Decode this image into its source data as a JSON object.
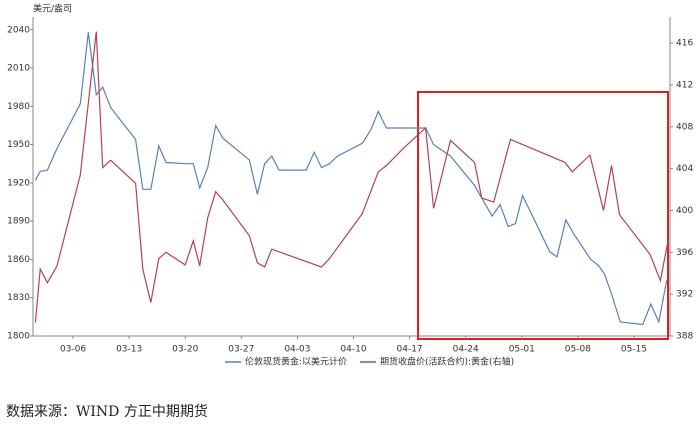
{
  "chart_data": {
    "type": "line",
    "y_label": "美元/盎司",
    "xlim": [
      0,
      79.5
    ],
    "xticks": [
      {
        "value": 5,
        "label": "03-06"
      },
      {
        "value": 12,
        "label": "03-13"
      },
      {
        "value": 19,
        "label": "03-20"
      },
      {
        "value": 26,
        "label": "03-27"
      },
      {
        "value": 33,
        "label": "04-03"
      },
      {
        "value": 40,
        "label": "04-10"
      },
      {
        "value": 47,
        "label": "04-17"
      },
      {
        "value": 54,
        "label": "04-24"
      },
      {
        "value": 61,
        "label": "05-01"
      },
      {
        "value": 68,
        "label": "05-08"
      },
      {
        "value": 75,
        "label": "05-15"
      }
    ],
    "ylim": [
      1800,
      2050
    ],
    "yticks": [
      1800,
      1830,
      1860,
      1890,
      1920,
      1950,
      1980,
      2010,
      2040
    ],
    "y2lim": [
      388,
      418.5
    ],
    "y2ticks": [
      388,
      392,
      396,
      400,
      404,
      408,
      412,
      416
    ],
    "grid": false,
    "series": [
      {
        "name": "伦敦现货黄金:以美元计价",
        "color": "#5b7fbf",
        "x": [
          0.3,
          0.9,
          1.8,
          3,
          5.9,
          6.9,
          7.9,
          8.7,
          9.7,
          12.8,
          13.7,
          14.7,
          15.7,
          16.6,
          19,
          20,
          20.8,
          21.8,
          22.8,
          23.7,
          27,
          28,
          28.9,
          29.8,
          30.7,
          32.5,
          34.1,
          35.1,
          36,
          37,
          38,
          41.1,
          42.2,
          43.1,
          44.1,
          46.3,
          48.2,
          49,
          50,
          52.1,
          55.1,
          57.3,
          58.3,
          59.3,
          60.2,
          61.1,
          64.5,
          65.4,
          66.5,
          67.5,
          69.6,
          70.6,
          71.3,
          72.2,
          73.3,
          76.1,
          77.1,
          78.1,
          79.1
        ],
        "values": [
          1922,
          1929,
          1930,
          1947,
          1982,
          2038,
          1989,
          1995,
          1979,
          1954,
          1915,
          1915,
          1949,
          1936,
          1935,
          1935,
          1916,
          1932,
          1965,
          1955,
          1938,
          1911,
          1935,
          1941,
          1930,
          1930,
          1930,
          1944,
          1932,
          1935,
          1941,
          1951,
          1962,
          1976,
          1963,
          1963,
          1963,
          1963,
          1950,
          1941,
          1918,
          1894,
          1903,
          1886,
          1888,
          1910,
          1866,
          1862,
          1891,
          1880,
          1860,
          1855,
          1849,
          1833,
          1811,
          1809,
          1825,
          1811,
          1844
        ]
      },
      {
        "name": "期货收盘价(活跃合约):黄金(右轴)",
        "color": "#b5434f",
        "axis": "y2",
        "x": [
          0.3,
          0.9,
          1.8,
          3,
          5.9,
          7.9,
          8.7,
          9.7,
          12.8,
          13.7,
          14.7,
          15.7,
          16.6,
          19,
          20,
          20.8,
          21.8,
          22.8,
          23.7,
          27,
          28,
          28.9,
          29.8,
          36,
          37,
          41.1,
          43.1,
          44.1,
          46.3,
          49,
          50,
          52.1,
          55.1,
          56,
          57.5,
          59.6,
          66.4,
          67.3,
          69.5,
          71.2,
          72.2,
          73.2,
          77,
          78.3,
          79.3
        ],
        "values": [
          389.3,
          394.4,
          393.1,
          394.7,
          403.4,
          417.1,
          404.1,
          404.8,
          402.6,
          394.4,
          391.2,
          395.4,
          396,
          394.8,
          397.1,
          394.7,
          399.3,
          401.8,
          401,
          397.6,
          395,
          394.6,
          396.3,
          394.6,
          395.4,
          399.7,
          403.7,
          404.3,
          406,
          407.9,
          400.2,
          406.7,
          404.6,
          401.2,
          400.8,
          406.8,
          404.6,
          403.7,
          405.3,
          400,
          404.3,
          399.6,
          395.8,
          393.3,
          397.3
        ]
      }
    ],
    "source": "数据来源：WIND 方正中期期货"
  }
}
